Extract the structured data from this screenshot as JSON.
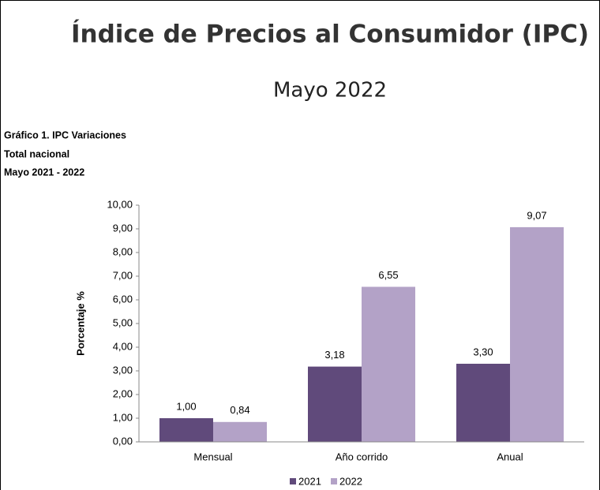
{
  "chart_data": {
    "type": "bar",
    "title": "Índice de Precios al Consumidor (IPC)",
    "subtitle": "Mayo 2022",
    "caption": [
      "Gráfico 1. IPC Variaciones",
      "Total nacional",
      "Mayo 2021 - 2022"
    ],
    "y_label": "Porcentaje %",
    "categories": [
      "Mensual",
      "Año corrido",
      "Anual"
    ],
    "series": [
      {
        "name": "2021",
        "color": "#604a7b",
        "values": [
          1.0,
          3.18,
          3.3
        ],
        "value_labels": [
          "1,00",
          "3,18",
          "3,30"
        ]
      },
      {
        "name": "2022",
        "color": "#b3a2c7",
        "values": [
          0.84,
          6.55,
          9.07
        ],
        "value_labels": [
          "0,84",
          "6,55",
          "9,07"
        ]
      }
    ],
    "ylim": [
      0,
      10
    ],
    "yticks": [
      {
        "value": 0,
        "label": "0,00"
      },
      {
        "value": 1,
        "label": "1,00"
      },
      {
        "value": 2,
        "label": "2,00"
      },
      {
        "value": 3,
        "label": "3,00"
      },
      {
        "value": 4,
        "label": "4,00"
      },
      {
        "value": 5,
        "label": "5,00"
      },
      {
        "value": 6,
        "label": "6,00"
      },
      {
        "value": 7,
        "label": "7,00"
      },
      {
        "value": 8,
        "label": "8,00"
      },
      {
        "value": 9,
        "label": "9,00"
      },
      {
        "value": 10,
        "label": "10,00"
      }
    ],
    "legend": "bottom"
  }
}
